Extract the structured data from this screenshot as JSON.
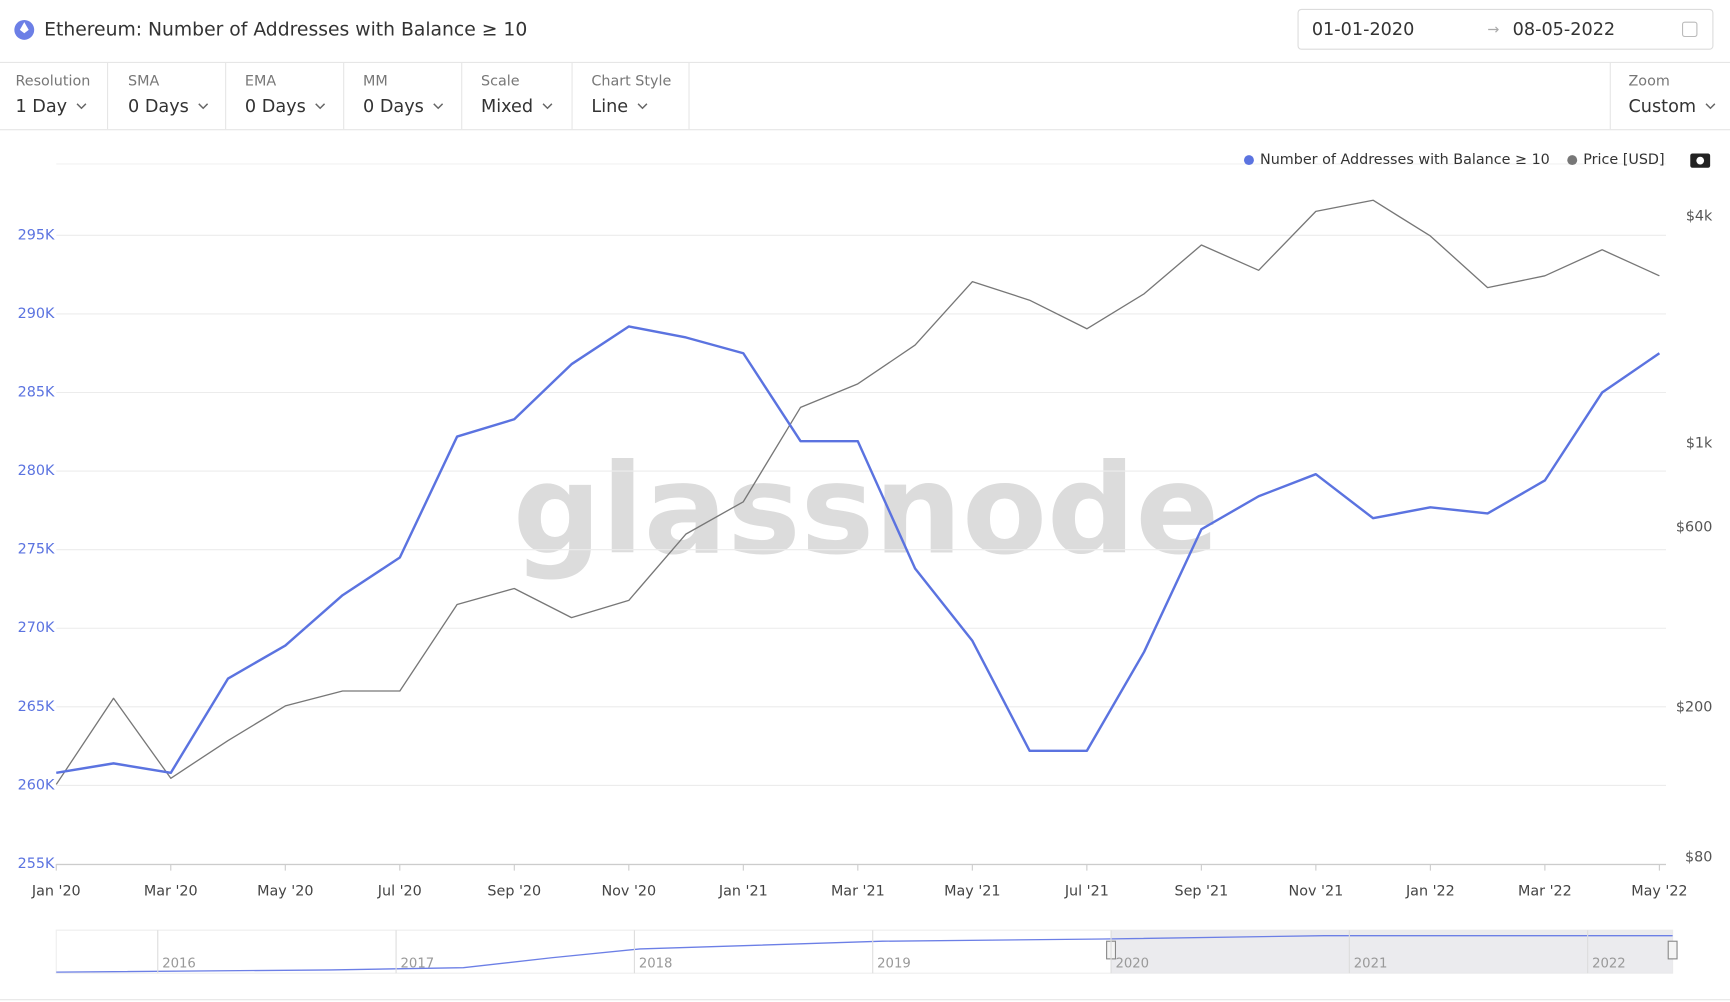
{
  "header": {
    "title": "Ethereum: Number of Addresses with Balance ≥ 10",
    "date_from": "01-01-2020",
    "date_to": "08-05-2022"
  },
  "controls": [
    {
      "label": "Resolution",
      "value": "1 Day"
    },
    {
      "label": "SMA",
      "value": "0 Days"
    },
    {
      "label": "EMA",
      "value": "0 Days"
    },
    {
      "label": "MM",
      "value": "0 Days"
    },
    {
      "label": "Scale",
      "value": "Mixed"
    },
    {
      "label": "Chart Style",
      "value": "Line"
    },
    {
      "label": "Zoom",
      "value": "Custom"
    }
  ],
  "chart_data": {
    "type": "line",
    "watermark": "glassnode",
    "x": [
      "2020-01",
      "2020-02",
      "2020-03",
      "2020-04",
      "2020-05",
      "2020-06",
      "2020-07",
      "2020-08",
      "2020-09",
      "2020-10",
      "2020-11",
      "2020-12",
      "2021-01",
      "2021-02",
      "2021-03",
      "2021-04",
      "2021-05",
      "2021-06",
      "2021-07",
      "2021-08",
      "2021-09",
      "2021-10",
      "2021-11",
      "2021-12",
      "2022-01",
      "2022-02",
      "2022-03",
      "2022-04",
      "2022-05"
    ],
    "series": [
      {
        "name": "Number of Addresses with Balance ≥ 10",
        "color": "#5b73e0",
        "values": [
          260800,
          261400,
          260800,
          266800,
          268900,
          272100,
          274500,
          282200,
          283300,
          286800,
          289200,
          288500,
          287500,
          281900,
          281900,
          273800,
          269200,
          262200,
          262200,
          268500,
          276300,
          278400,
          279800,
          277000,
          277700,
          277300,
          279400,
          285000,
          287500
        ]
      },
      {
        "name": "Price [USD]",
        "color": "#777777",
        "axis": "y2",
        "values": [
          130,
          220,
          135,
          170,
          210,
          230,
          230,
          390,
          430,
          360,
          400,
          600,
          730,
          1300,
          1500,
          1900,
          2800,
          2500,
          2100,
          2600,
          3500,
          3000,
          4300,
          4600,
          3700,
          2700,
          2900,
          3400,
          2900
        ]
      }
    ],
    "ylim": [
      255000,
      300000
    ],
    "yticks": [
      {
        "value": 255000,
        "label": "255K"
      },
      {
        "value": 260000,
        "label": "260K"
      },
      {
        "value": 265000,
        "label": "265K"
      },
      {
        "value": 270000,
        "label": "270K"
      },
      {
        "value": 275000,
        "label": "275K"
      },
      {
        "value": 280000,
        "label": "280K"
      },
      {
        "value": 285000,
        "label": "285K"
      },
      {
        "value": 290000,
        "label": "290K"
      },
      {
        "value": 295000,
        "label": "295K"
      }
    ],
    "y2lim": [
      80,
      6000
    ],
    "y2scale": "log",
    "y2ticks": [
      {
        "value": 80,
        "label": "$80"
      },
      {
        "value": 200,
        "label": "$200"
      },
      {
        "value": 600,
        "label": "$600"
      },
      {
        "value": 1000,
        "label": "$1k"
      },
      {
        "value": 4000,
        "label": "$4k"
      }
    ],
    "xticks": [
      {
        "value": "2020-01",
        "label": "Jan '20"
      },
      {
        "value": "2020-03",
        "label": "Mar '20"
      },
      {
        "value": "2020-05",
        "label": "May '20"
      },
      {
        "value": "2020-07",
        "label": "Jul '20"
      },
      {
        "value": "2020-09",
        "label": "Sep '20"
      },
      {
        "value": "2020-11",
        "label": "Nov '20"
      },
      {
        "value": "2021-01",
        "label": "Jan '21"
      },
      {
        "value": "2021-03",
        "label": "Mar '21"
      },
      {
        "value": "2021-05",
        "label": "May '21"
      },
      {
        "value": "2021-07",
        "label": "Jul '21"
      },
      {
        "value": "2021-09",
        "label": "Sep '21"
      },
      {
        "value": "2021-11",
        "label": "Nov '21"
      },
      {
        "value": "2022-01",
        "label": "Jan '22"
      },
      {
        "value": "2022-03",
        "label": "Mar '22"
      },
      {
        "value": "2022-05",
        "label": "May '22"
      }
    ],
    "grid": true,
    "legend": "top-right"
  },
  "navigator": {
    "labels": [
      "2016",
      "2017",
      "2018",
      "2019",
      "2020",
      "2021",
      "2022"
    ]
  }
}
